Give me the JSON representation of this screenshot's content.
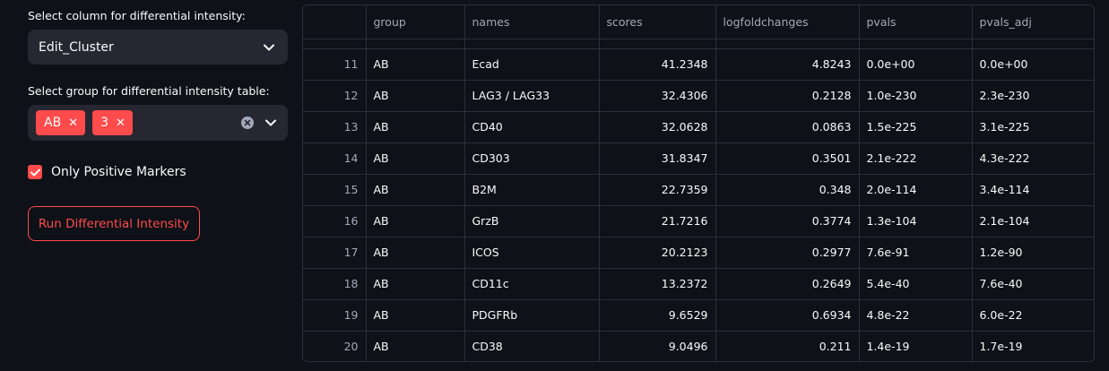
{
  "controls": {
    "column_label": "Select column for differential intensity:",
    "column_value": "Edit_Cluster",
    "group_label": "Select group for differential intensity table:",
    "group_tags": [
      "AB",
      "3"
    ],
    "checkbox_label": "Only Positive Markers",
    "checkbox_checked": true,
    "run_button": "Run Differential Intensity"
  },
  "colors": {
    "accent": "#ff4b4b",
    "background": "#0e1117",
    "widget_bg": "#262730",
    "border": "#2b2f3a"
  },
  "table": {
    "columns": [
      "",
      "group",
      "names",
      "scores",
      "logfoldchanges",
      "pvals",
      "pvals_adj"
    ],
    "rows": [
      [
        "11",
        "AB",
        "Ecad",
        "41.2348",
        "4.8243",
        "0.0e+00",
        "0.0e+00"
      ],
      [
        "12",
        "AB",
        "LAG3 / LAG33",
        "32.4306",
        "0.2128",
        "1.0e-230",
        "2.3e-230"
      ],
      [
        "13",
        "AB",
        "CD40",
        "32.0628",
        "0.0863",
        "1.5e-225",
        "3.1e-225"
      ],
      [
        "14",
        "AB",
        "CD303",
        "31.8347",
        "0.3501",
        "2.1e-222",
        "4.3e-222"
      ],
      [
        "15",
        "AB",
        "B2M",
        "22.7359",
        "0.348",
        "2.0e-114",
        "3.4e-114"
      ],
      [
        "16",
        "AB",
        "GrzB",
        "21.7216",
        "0.3774",
        "1.3e-104",
        "2.1e-104"
      ],
      [
        "17",
        "AB",
        "ICOS",
        "20.2123",
        "0.2977",
        "7.6e-91",
        "1.2e-90"
      ],
      [
        "18",
        "AB",
        "CD11c",
        "13.2372",
        "0.2649",
        "5.4e-40",
        "7.6e-40"
      ],
      [
        "19",
        "AB",
        "PDGFRb",
        "9.6529",
        "0.6934",
        "4.8e-22",
        "6.0e-22"
      ],
      [
        "20",
        "AB",
        "CD38",
        "9.0496",
        "0.211",
        "1.4e-19",
        "1.7e-19"
      ]
    ]
  }
}
